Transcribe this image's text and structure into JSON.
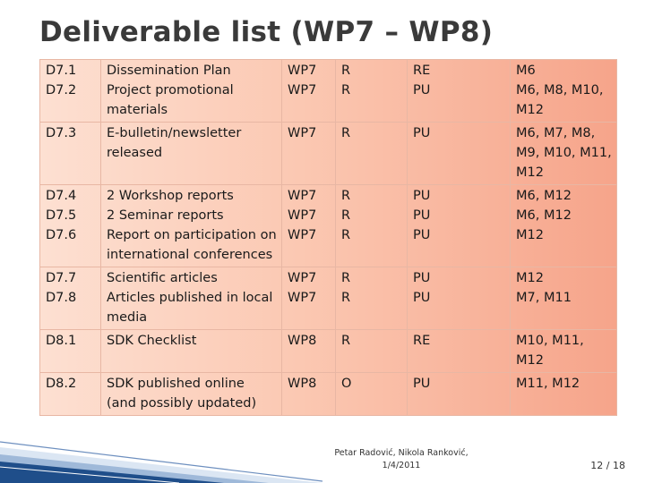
{
  "title": "Deliverable list (WP7 – WP8)",
  "rows": [
    {
      "ids": [
        "D7.1",
        "D7.2"
      ],
      "desc": [
        "Dissemination Plan",
        "Project promotional materials"
      ],
      "wp": [
        "WP7",
        "WP7"
      ],
      "nature": [
        "R",
        "R"
      ],
      "level": [
        "RE",
        "PU"
      ],
      "months": [
        "M6",
        "M6, M8, M10, M12"
      ]
    },
    {
      "ids": [
        "D7.3"
      ],
      "desc": [
        "E-bulletin/newsletter released"
      ],
      "wp": [
        "WP7"
      ],
      "nature": [
        "R"
      ],
      "level": [
        "PU"
      ],
      "months": [
        "M6, M7, M8, M9, M10, M11, M12"
      ]
    },
    {
      "ids": [
        "D7.4",
        "D7.5",
        "D7.6"
      ],
      "desc": [
        "2 Workshop reports",
        "2 Seminar reports",
        "Report on participation on international conferences"
      ],
      "wp": [
        "WP7",
        "WP7",
        "WP7"
      ],
      "nature": [
        "R",
        "R",
        "R"
      ],
      "level": [
        "PU",
        "PU",
        "PU"
      ],
      "months": [
        "M6, M12",
        "M6, M12",
        "M12"
      ]
    },
    {
      "ids": [
        "D7.7",
        "D7.8"
      ],
      "desc": [
        "Scientific articles",
        "Articles published in local media"
      ],
      "wp": [
        "WP7",
        "WP7"
      ],
      "nature": [
        "R",
        "R"
      ],
      "level": [
        "PU",
        "PU"
      ],
      "months": [
        "M12",
        "M7, M11"
      ]
    },
    {
      "ids": [
        "D8.1"
      ],
      "desc": [
        "SDK Checklist"
      ],
      "wp": [
        "WP8"
      ],
      "nature": [
        "R"
      ],
      "level": [
        "RE"
      ],
      "months": [
        "M10, M11, M12"
      ]
    },
    {
      "ids": [
        "D8.2"
      ],
      "desc": [
        "SDK published online (and possibly updated)"
      ],
      "wp": [
        "WP8"
      ],
      "nature": [
        "O"
      ],
      "level": [
        "PU"
      ],
      "months": [
        "M11, M12"
      ]
    }
  ],
  "footer": {
    "author": "Petar Radović, Nikola Ranković,",
    "date": "1/4/2011",
    "page": "12 / 18"
  },
  "colors": {
    "table_left": "#fde0d2",
    "table_right": "#f6a48a",
    "deco_blue": "#1f4e8a"
  }
}
